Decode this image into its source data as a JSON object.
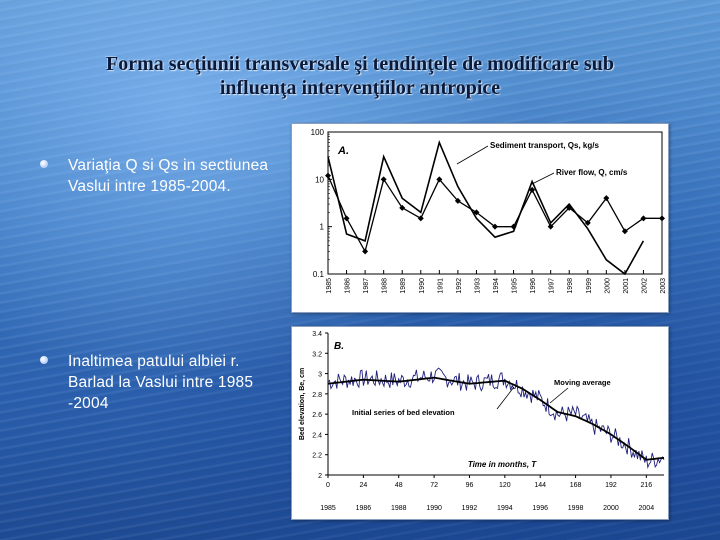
{
  "slide": {
    "title_line1": "Forma secţiunii transversale şi tendinţele de modificare sub",
    "title_line2": "influenţa intervenţiilor antropice",
    "bullets": [
      {
        "text": "Variaţia Q si Qs in sectiunea Vaslui intre 1985-2004."
      },
      {
        "text": "Inaltimea patului albiei r. Barlad la Vaslui intre 1985 -2004"
      }
    ]
  },
  "chart_data": [
    {
      "type": "line",
      "panel_label": "A.",
      "y_scale": "log",
      "ylim": [
        0.1,
        100
      ],
      "y_ticks": [
        "100",
        "10",
        "1",
        "0.1"
      ],
      "categories": [
        "1985",
        "1986",
        "1987",
        "1988",
        "1989",
        "1990",
        "1991",
        "1992",
        "1993",
        "1994",
        "1995",
        "1996",
        "1997",
        "1998",
        "1999",
        "2000",
        "2001",
        "2002",
        "2003"
      ],
      "series": [
        {
          "name": "Sediment transport, Qs, kg/s",
          "color": "#000000",
          "marker": "none",
          "values": [
            30,
            0.7,
            0.5,
            30,
            4,
            2,
            60,
            7,
            1.5,
            0.6,
            0.8,
            9,
            1.2,
            3,
            0.9,
            0.2,
            0.1,
            0.5,
            null
          ]
        },
        {
          "name": "River flow, Q, cm/s",
          "color": "#000000",
          "marker": "diamond",
          "values": [
            12,
            1.5,
            0.3,
            10,
            2.5,
            1.5,
            10,
            3.5,
            2,
            1,
            1,
            6,
            1,
            2.5,
            1.2,
            4,
            0.8,
            1.5,
            1.5
          ]
        }
      ]
    },
    {
      "type": "line",
      "panel_label": "B.",
      "ylabel": "Bed elevation, Be, cm",
      "xlabel": "Time in months, T",
      "ylim": [
        2,
        3.4
      ],
      "y_ticks": [
        "3.4",
        "3.2",
        "3",
        "2.8",
        "2.6",
        "2.4",
        "2.2",
        "2"
      ],
      "x_ticks": [
        "0",
        "24",
        "48",
        "72",
        "96",
        "120",
        "144",
        "168",
        "192",
        "216"
      ],
      "x_years": [
        "1985",
        "1986",
        "1988",
        "1990",
        "1992",
        "1994",
        "1996",
        "1998",
        "2000",
        "2004"
      ],
      "xlim": [
        0,
        228
      ],
      "series": [
        {
          "name": "Initial series of bed elevation",
          "color": "#1f1f7a",
          "anchors_x": [
            0,
            24,
            48,
            72,
            96,
            120,
            132,
            144,
            156,
            168,
            180,
            192,
            204,
            216,
            228
          ],
          "anchors_y": [
            2.92,
            2.95,
            2.93,
            2.98,
            2.9,
            2.95,
            2.85,
            2.75,
            2.6,
            2.6,
            2.48,
            2.4,
            2.28,
            2.13,
            2.18
          ],
          "noise": 0.09
        },
        {
          "name": "Moving average",
          "color": "#000000",
          "anchors_x": [
            0,
            24,
            48,
            72,
            96,
            120,
            132,
            144,
            156,
            168,
            180,
            192,
            204,
            216,
            228
          ],
          "anchors_y": [
            2.9,
            2.94,
            2.92,
            2.96,
            2.9,
            2.93,
            2.85,
            2.74,
            2.62,
            2.58,
            2.5,
            2.4,
            2.28,
            2.15,
            2.17
          ]
        }
      ]
    }
  ]
}
